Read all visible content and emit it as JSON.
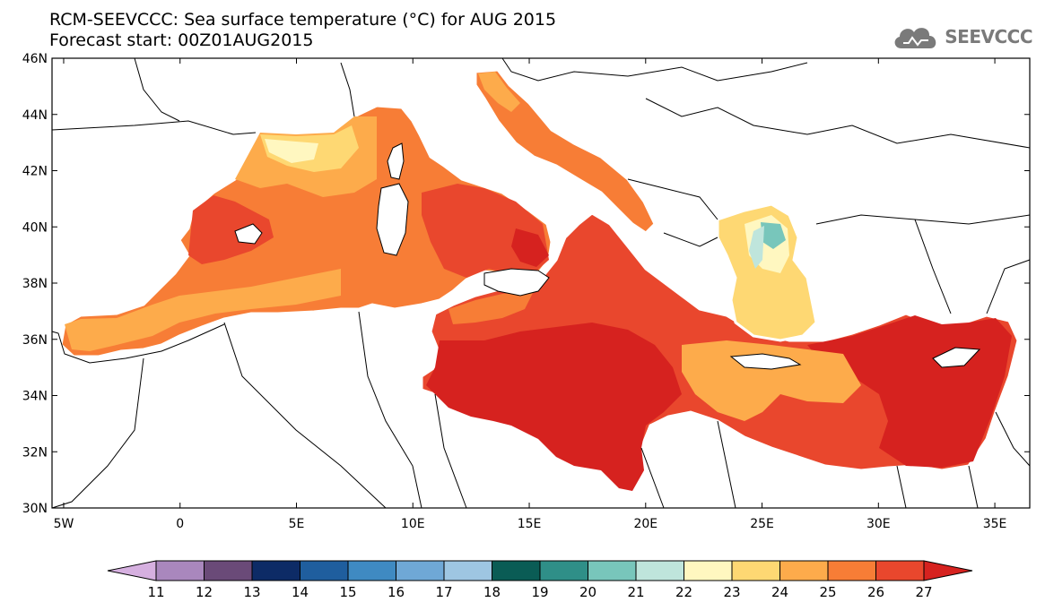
{
  "header": {
    "title_line1": "RCM-SEEVCCC: Sea surface temperature (°C) for AUG 2015",
    "title_line2": "Forecast start: 00Z01AUG2015",
    "logo_text": "SEEVCCC"
  },
  "map": {
    "lat_ticks": [
      "46N",
      "44N",
      "42N",
      "40N",
      "38N",
      "36N",
      "34N",
      "32N",
      "30N"
    ],
    "lon_ticks": [
      "5W",
      "0",
      "5E",
      "10E",
      "15E",
      "20E",
      "25E",
      "30E",
      "35E"
    ],
    "lat_range": [
      30,
      46
    ],
    "lon_range": [
      -5.5,
      36.5
    ]
  },
  "colorbar": {
    "labels": [
      "11",
      "12",
      "13",
      "14",
      "15",
      "16",
      "17",
      "18",
      "19",
      "20",
      "21",
      "22",
      "23",
      "24",
      "25",
      "26",
      "27"
    ],
    "colors": [
      "#d6b0e0",
      "#a987bd",
      "#6a4a78",
      "#0d2b66",
      "#1f5e9e",
      "#3f8ac2",
      "#6fa8d6",
      "#9ec6e2",
      "#0a5c55",
      "#2f8f88",
      "#78c6bb",
      "#bfe5dc",
      "#fff7c0",
      "#fed873",
      "#fdab4b",
      "#f77d36",
      "#e9472d",
      "#d6221f"
    ]
  },
  "colors": {
    "sst_26": "#f77d36",
    "sst_27": "#e9472d",
    "sst_28": "#d6221f",
    "sst_24": "#fdab4b",
    "sst_23": "#fed873",
    "sst_22": "#fff7c0",
    "land": "#ffffff",
    "border": "#000000"
  }
}
